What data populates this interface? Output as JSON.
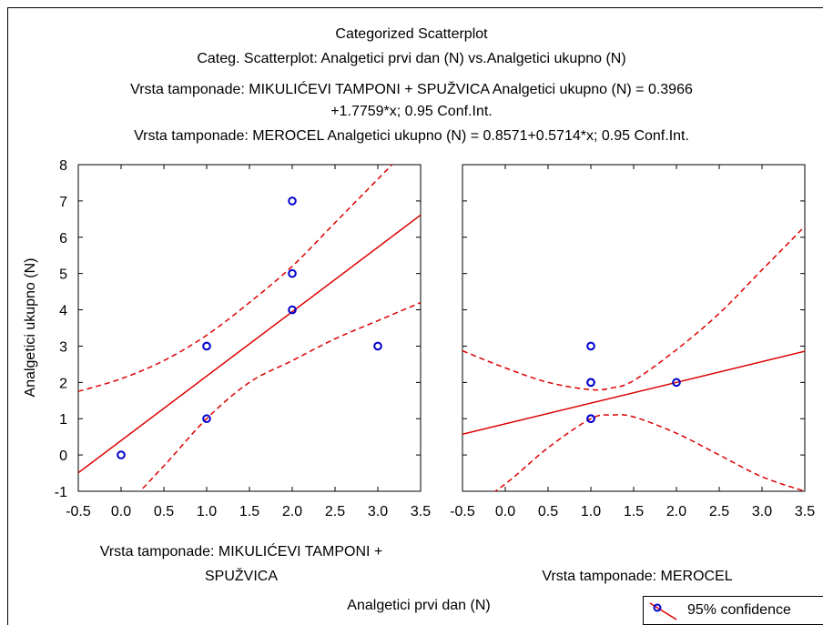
{
  "titles": {
    "line1": "Categorized Scatterplot",
    "line2": "Categ. Scatterplot: Analgetici prvi dan (N) vs.Analgetici ukupno (N)",
    "line3": "Vrsta tamponade: MIKULIĆEVI TAMPONI + SPUŽVICA Analgetici ukupno (N) = 0.3966",
    "line4": "+1.7759*x; 0.95 Conf.Int.",
    "line5": "Vrsta tamponade: MEROCEL Analgetici ukupno (N) = 0.8571+0.5714*x; 0.95 Conf.Int."
  },
  "footer": {
    "panel1_line1": "Vrsta tamponade: MIKULIĆEVI TAMPONI +",
    "panel1_line2": "SPUŽVICA",
    "panel2": "Vrsta tamponade: MEROCEL",
    "xlabel": "Analgetici prvi dan (N)"
  },
  "legend": {
    "label": "95% confidence"
  },
  "colors": {
    "points": "#0000cc",
    "lines": "#dd0000",
    "axes": "#000000"
  },
  "chart_data": [
    {
      "type": "scatter",
      "panel": "Vrsta tamponade: MIKULIĆEVI TAMPONI + SPUŽVICA",
      "xlabel": "Analgetici prvi dan (N)",
      "ylabel": "Analgetici ukupno (N)",
      "xlim": [
        -0.5,
        3.5
      ],
      "ylim": [
        -1,
        8
      ],
      "xticks": [
        "-0.5",
        "0.0",
        "0.5",
        "1.0",
        "1.5",
        "2.0",
        "2.5",
        "3.0",
        "3.5"
      ],
      "yticks": [
        "-1",
        "0",
        "1",
        "2",
        "3",
        "4",
        "5",
        "6",
        "7",
        "8"
      ],
      "points": [
        [
          0,
          0
        ],
        [
          1,
          1
        ],
        [
          1,
          3
        ],
        [
          2,
          4
        ],
        [
          2,
          5
        ],
        [
          2,
          7
        ],
        [
          3,
          3
        ]
      ],
      "fit": {
        "intercept": 0.3966,
        "slope": 1.7759
      },
      "confidence_band": {
        "x": [
          -0.5,
          0.0,
          0.5,
          1.0,
          1.5,
          2.0,
          2.5,
          3.0,
          3.5
        ],
        "upper": [
          1.75,
          2.1,
          2.6,
          3.3,
          4.2,
          5.2,
          6.4,
          7.6,
          8.8
        ],
        "lower": [
          -2.3,
          -1.5,
          -0.3,
          1.0,
          2.0,
          2.6,
          3.2,
          3.7,
          4.2
        ]
      },
      "grid": false
    },
    {
      "type": "scatter",
      "panel": "Vrsta tamponade: MEROCEL",
      "xlabel": "Analgetici prvi dan (N)",
      "xlim": [
        -0.5,
        3.5
      ],
      "ylim": [
        -1,
        8
      ],
      "xticks": [
        "-0.5",
        "0.0",
        "0.5",
        "1.0",
        "1.5",
        "2.0",
        "2.5",
        "3.0",
        "3.5"
      ],
      "points": [
        [
          1,
          1
        ],
        [
          1,
          1
        ],
        [
          1,
          2
        ],
        [
          1,
          2
        ],
        [
          1,
          3
        ],
        [
          2,
          2
        ]
      ],
      "fit": {
        "intercept": 0.8571,
        "slope": 0.5714
      },
      "confidence_band": {
        "x": [
          -0.5,
          0.0,
          0.5,
          1.0,
          1.25,
          1.5,
          2.0,
          2.5,
          3.0,
          3.5
        ],
        "upper": [
          2.87,
          2.4,
          2.0,
          1.8,
          1.85,
          2.05,
          2.9,
          3.9,
          5.1,
          6.3
        ],
        "lower": [
          -1.6,
          -0.8,
          0.2,
          1.0,
          1.1,
          1.05,
          0.6,
          0.0,
          -0.6,
          -1.0
        ]
      },
      "grid": false
    }
  ]
}
